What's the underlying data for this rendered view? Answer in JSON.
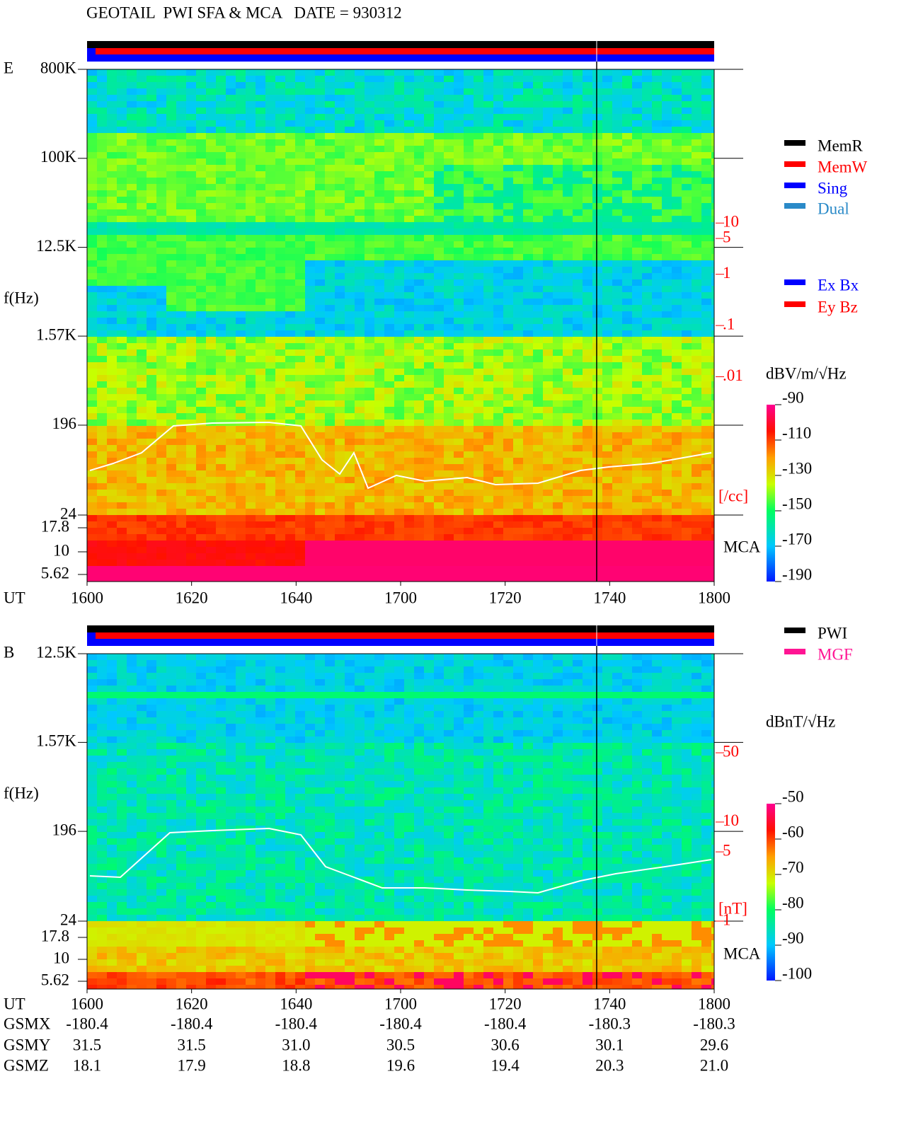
{
  "header": {
    "title": "GEOTAIL  PWI SFA & MCA   DATE = 930312"
  },
  "chart_data": [
    {
      "type": "spectrogram",
      "panel": "E",
      "ylabel": "f(Hz)",
      "xlabel": "UT",
      "categories": [
        "1600",
        "1620",
        "1640",
        "1700",
        "1720",
        "1740",
        "1800"
      ],
      "yscale": "log",
      "ylim": [
        24,
        800000
      ],
      "yticks": [
        {
          "value": 800000,
          "label": "800K"
        },
        {
          "value": 100000,
          "label": "100K"
        },
        {
          "value": 12500,
          "label": "12.5K"
        },
        {
          "value": 1570,
          "label": "1.57K"
        },
        196,
        24
      ],
      "mca_label": "MCA",
      "mca_ticks": [
        17.8,
        10,
        5.62
      ],
      "y2scale": "log",
      "y2lim": [
        2e-05,
        10000
      ],
      "y2ticks": [
        10,
        5,
        1,
        {
          "value": 0.1,
          "label": ".1"
        },
        {
          "value": 0.01,
          "label": ".01"
        }
      ],
      "y2label": "[/cc]",
      "y2color": "#ff0000",
      "colorbar": {
        "label": "dBV/m/√Hz",
        "clim": [
          -190,
          -90
        ],
        "ticks": [
          -90,
          -110,
          -130,
          -150,
          -170,
          -190
        ]
      },
      "legends": [
        {
          "series": [
            {
              "name": "MemR",
              "color": "#000000"
            },
            {
              "name": "MemW",
              "color": "#ff0000"
            },
            {
              "name": "Sing",
              "color": "#0000ff"
            },
            {
              "name": "Dual",
              "color": "#2a8ac8"
            }
          ]
        },
        {
          "series": [
            {
              "name": "Ex Bx",
              "color": "#0000ff"
            },
            {
              "name": "Ey Bz",
              "color": "#ff0000"
            }
          ]
        }
      ]
    },
    {
      "type": "spectrogram",
      "panel": "B",
      "ylabel": "f(Hz)",
      "xlabel": "UT",
      "categories": [
        "1600",
        "1620",
        "1640",
        "1700",
        "1720",
        "1740",
        "1800"
      ],
      "yscale": "log",
      "ylim": [
        24,
        12500
      ],
      "yticks": [
        {
          "value": 12500,
          "label": "12.5K"
        },
        {
          "value": 1570,
          "label": "1.57K"
        },
        196,
        24
      ],
      "mca_label": "MCA",
      "mca_ticks": [
        17.8,
        10,
        5.62
      ],
      "y2scale": "log",
      "y2lim": [
        1,
        500
      ],
      "y2ticks": [
        50,
        10,
        5,
        1
      ],
      "y2label": "[nT]",
      "y2color": "#ff0000",
      "colorbar": {
        "label": "dBnT/√Hz",
        "clim": [
          -100,
          -50
        ],
        "ticks": [
          -50,
          -60,
          -70,
          -80,
          -90,
          -100
        ]
      },
      "legends": [
        {
          "series": [
            {
              "name": "PWI",
              "color": "#000000"
            },
            {
              "name": "MGF",
              "color": "#ff1493"
            }
          ]
        }
      ]
    }
  ],
  "orbit_table": {
    "rows": [
      {
        "label": "GSMX",
        "cells": [
          "-180.4",
          "-180.4",
          "-180.4",
          "-180.4",
          "-180.4",
          "-180.3",
          "-180.3"
        ]
      },
      {
        "label": "GSMY",
        "cells": [
          "31.5",
          "31.5",
          "31.0",
          "30.5",
          "30.6",
          "30.1",
          "29.6"
        ]
      },
      {
        "label": "GSMZ",
        "cells": [
          "18.1",
          "17.9",
          "18.8",
          "19.6",
          "19.4",
          "20.3",
          "21.0"
        ]
      }
    ]
  }
}
